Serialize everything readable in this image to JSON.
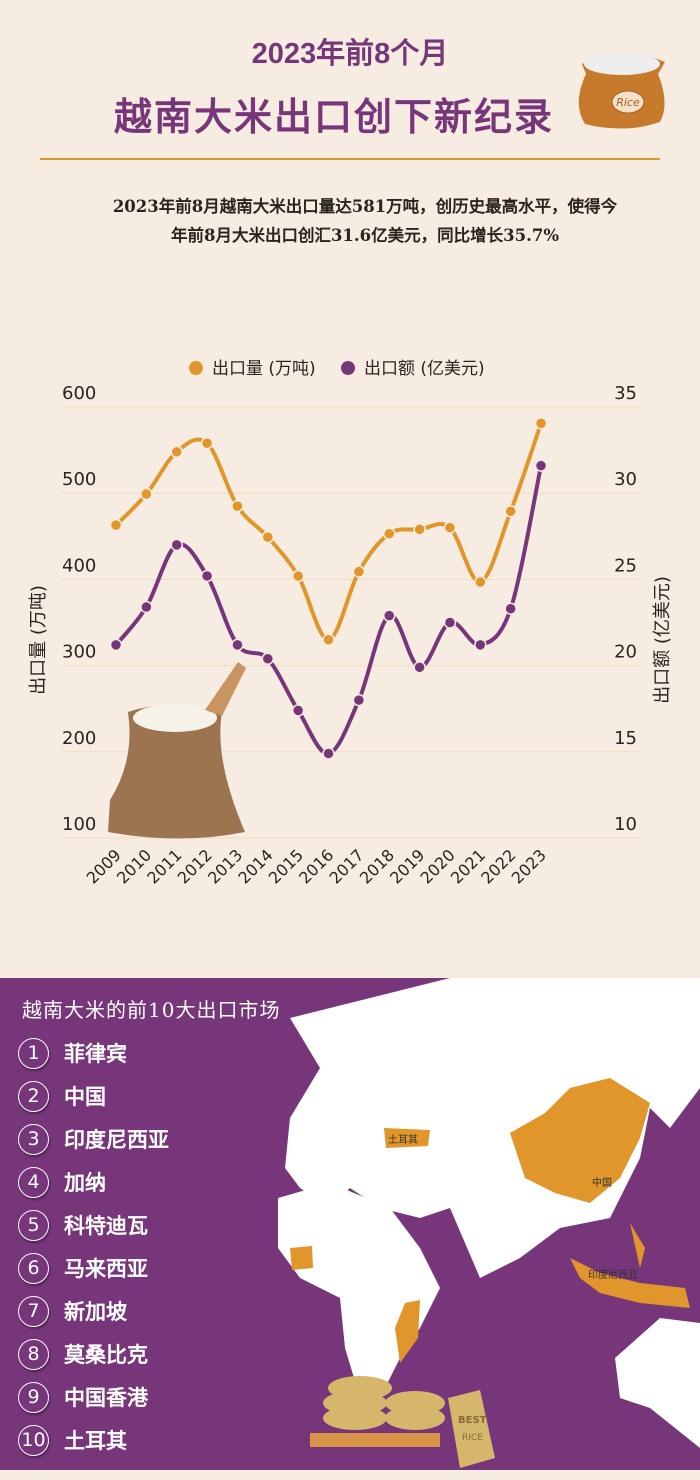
{
  "header": {
    "subtitle": "2023年前8个月",
    "title": "越南大米出口创下新纪录",
    "description_line1": "2023年前8月越南大米出口量达581万吨，创历史最高水平，使得今",
    "description_line2": "年前8月大米出口创汇31.6亿美元，同比增长35.7%"
  },
  "chart_data": {
    "type": "line",
    "categories": [
      "2009",
      "2010",
      "2011",
      "2012",
      "2013",
      "2014",
      "2015",
      "2016",
      "2017",
      "2018",
      "2019",
      "2020",
      "2021",
      "2022",
      "2023"
    ],
    "series": [
      {
        "name": "出口量 (万吨)",
        "axis": "left",
        "color": "#e0962a",
        "values": [
          463,
          499,
          548,
          558,
          485,
          449,
          404,
          330,
          409,
          453,
          458,
          460,
          397,
          479,
          581
        ]
      },
      {
        "name": "出口额 (亿美元)",
        "axis": "right",
        "color": "#77367a",
        "values": [
          21.2,
          23.4,
          27.0,
          25.2,
          21.2,
          20.4,
          17.4,
          14.9,
          18.0,
          22.9,
          19.9,
          22.5,
          21.2,
          23.3,
          31.6
        ]
      }
    ],
    "ylabel": "出口量 (万吨)",
    "ylabel_right": "出口额 (亿美元)",
    "ylim": [
      100,
      600
    ],
    "ylim_right": [
      10,
      35
    ],
    "yticks": [
      "600",
      "500",
      "400",
      "300",
      "200",
      "100"
    ],
    "yticks_right": [
      "35",
      "30",
      "25",
      "20",
      "15",
      "10"
    ],
    "grid": true,
    "legend": "top-center"
  },
  "markets": {
    "title": "越南大米的前10大出口市场",
    "items": [
      {
        "n": "1",
        "name": "菲律宾"
      },
      {
        "n": "2",
        "name": "中国"
      },
      {
        "n": "3",
        "name": "印度尼西亚"
      },
      {
        "n": "4",
        "name": "加纳"
      },
      {
        "n": "5",
        "name": "科特迪瓦"
      },
      {
        "n": "6",
        "name": "马来西亚"
      },
      {
        "n": "7",
        "name": "新加坡"
      },
      {
        "n": "8",
        "name": "莫桑比克"
      },
      {
        "n": "9",
        "name": "中国香港"
      },
      {
        "n": "10",
        "name": "土耳其"
      }
    ],
    "map_labels": {
      "turkey": "土耳其",
      "china": "中国",
      "indonesia": "印度尼西亚"
    },
    "highlight_color": "#e0962a"
  },
  "decor": {
    "bag_label": "Rice",
    "sack_label_1": "BEST",
    "sack_label_2": "RICE"
  }
}
